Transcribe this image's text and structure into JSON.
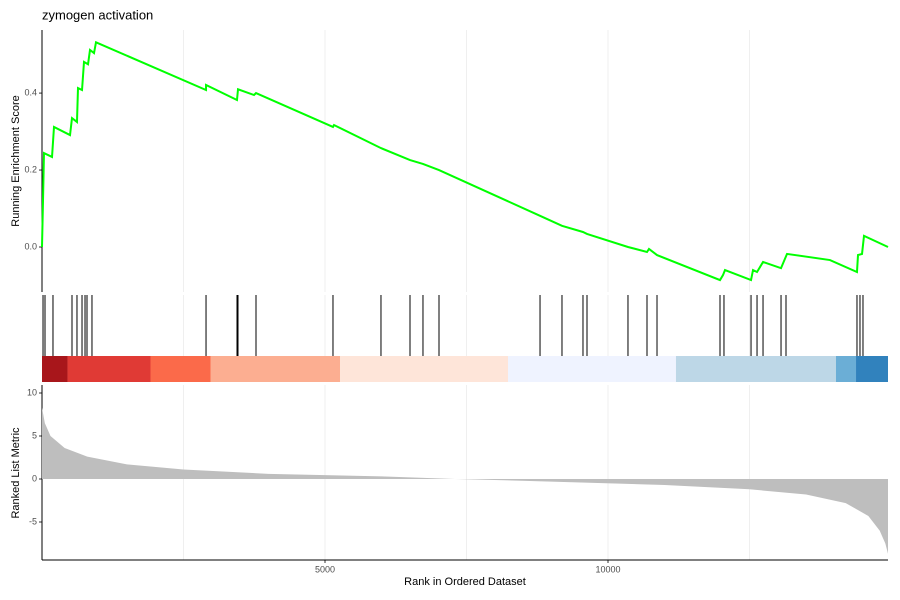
{
  "chart_data": [
    {
      "type": "line",
      "title": "zymogen activation",
      "y_label": "Running Enrichment Score",
      "color": "#00ff00",
      "x": [
        0,
        18,
        35,
        177,
        212,
        495,
        530,
        618,
        636,
        707,
        742,
        813,
        848,
        919,
        954,
        2898,
        2898,
        3445,
        3463,
        3746,
        3781,
        5141,
        5159,
        5989,
        6502,
        6731,
        7014,
        8799,
        9187,
        9558,
        9629,
        10353,
        10689,
        10724,
        10866,
        11979,
        12032,
        12067,
        12527,
        12562,
        12633,
        12739,
        13057,
        13163,
        13922,
        14399,
        14417,
        14488,
        14523,
        14947
      ],
      "values": [
        0,
        0.122,
        0.244,
        0.234,
        0.312,
        0.291,
        0.335,
        0.325,
        0.413,
        0.408,
        0.481,
        0.475,
        0.512,
        0.504,
        0.532,
        0.408,
        0.421,
        0.382,
        0.41,
        0.395,
        0.4,
        0.312,
        0.317,
        0.257,
        0.226,
        0.216,
        0.2,
        0.081,
        0.055,
        0.039,
        0.034,
        0,
        -0.013,
        -0.005,
        -0.021,
        -0.086,
        -0.073,
        -0.06,
        -0.086,
        -0.06,
        -0.065,
        -0.039,
        -0.055,
        -0.018,
        -0.034,
        -0.065,
        -0.021,
        -0.018,
        0.029,
        0
      ],
      "xlim": [
        0,
        14947
      ],
      "ylim": [
        -0.117,
        0.564
      ],
      "yticks": [
        {
          "value": 0,
          "label": "0.0"
        },
        {
          "value": 0.2,
          "label": "0.2"
        },
        {
          "value": 0.4,
          "label": "0.4"
        }
      ],
      "xgrid": [
        2500,
        5000,
        7500,
        10000,
        12500
      ]
    },
    {
      "type": "rug",
      "color": "#000000",
      "x": [
        18,
        53,
        194,
        530,
        618,
        707,
        760,
        795,
        883,
        2898,
        3445,
        3463,
        3781,
        5141,
        5989,
        6502,
        6731,
        7014,
        8799,
        9187,
        9558,
        9629,
        10353,
        10689,
        10866,
        11979,
        12049,
        12527,
        12633,
        12739,
        13057,
        13145,
        14399,
        14452,
        14505
      ],
      "band": [
        {
          "start": 0,
          "end": 451,
          "color": "#a8161b"
        },
        {
          "start": 451,
          "end": 1917,
          "color": "#e03a35"
        },
        {
          "start": 1917,
          "end": 2977,
          "color": "#fb6a4a"
        },
        {
          "start": 2977,
          "end": 5265,
          "color": "#fcae91"
        },
        {
          "start": 5265,
          "end": 8233,
          "color": "#fee5d9"
        },
        {
          "start": 8233,
          "end": 11201,
          "color": "#eff3ff"
        },
        {
          "start": 11201,
          "end": 14028,
          "color": "#bdd7e7"
        },
        {
          "start": 14028,
          "end": 14382,
          "color": "#6baed6"
        },
        {
          "start": 14382,
          "end": 14947,
          "color": "#3182bd"
        }
      ],
      "xlim": [
        0,
        14947
      ],
      "xgrid": [
        2500,
        5000,
        7500,
        10000,
        12500
      ]
    },
    {
      "type": "area",
      "y_label": "Ranked List Metric",
      "x_label": "Rank in Ordered Dataset",
      "color": "#bebebe",
      "x": [
        0,
        50,
        150,
        400,
        800,
        1500,
        2500,
        4000,
        6000,
        7300,
        9000,
        11000,
        12500,
        13500,
        14200,
        14600,
        14800,
        14900,
        14947
      ],
      "values": [
        8.3,
        6.5,
        5.0,
        3.6,
        2.6,
        1.7,
        1.1,
        0.6,
        0.3,
        0,
        -0.3,
        -0.7,
        -1.2,
        -1.8,
        -2.8,
        -4.3,
        -6.0,
        -7.5,
        -8.7
      ],
      "xlim": [
        0,
        14947
      ],
      "ylim": [
        -9.42,
        10.93
      ],
      "yticks": [
        10,
        5,
        0,
        -5
      ],
      "xticks": [
        5000,
        10000
      ],
      "xgrid": [
        2500,
        5000,
        7500,
        10000,
        12500
      ]
    }
  ]
}
